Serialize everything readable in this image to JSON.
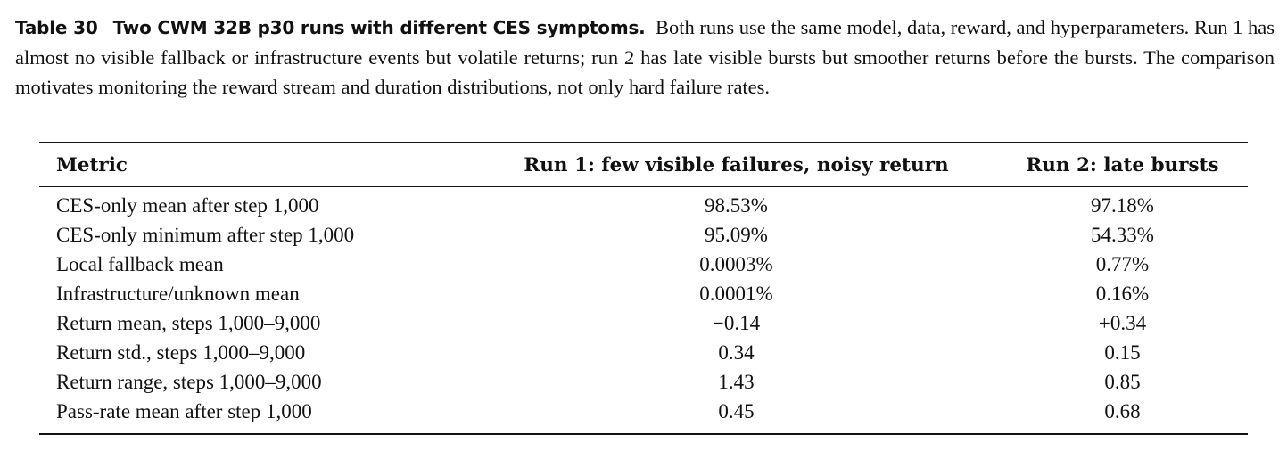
{
  "caption": {
    "label": "Table 30",
    "title": "Two CWM 32B p30 runs with different CES symptoms.",
    "text": "Both runs use the same model, data, reward, and hyperparameters. Run 1 has almost no visible fallback or infrastructure events but volatile returns; run 2 has late visible bursts but smoother returns before the bursts. The comparison motivates monitoring the reward stream and duration distributions, not only hard failure rates."
  },
  "table": {
    "headers": [
      "Metric",
      "Run 1: few visible failures, noisy return",
      "Run 2: late bursts"
    ],
    "rows": [
      [
        "CES-only mean after step 1,000",
        "98.53%",
        "97.18%"
      ],
      [
        "CES-only minimum after step 1,000",
        "95.09%",
        "54.33%"
      ],
      [
        "Local fallback mean",
        "0.0003%",
        "0.77%"
      ],
      [
        "Infrastructure/unknown mean",
        "0.0001%",
        "0.16%"
      ],
      [
        "Return mean, steps 1,000–9,000",
        "−0.14",
        "+0.34"
      ],
      [
        "Return std., steps 1,000–9,000",
        "0.34",
        "0.15"
      ],
      [
        "Return range, steps 1,000–9,000",
        "1.43",
        "0.85"
      ],
      [
        "Pass-rate mean after step 1,000",
        "0.45",
        "0.68"
      ]
    ]
  }
}
